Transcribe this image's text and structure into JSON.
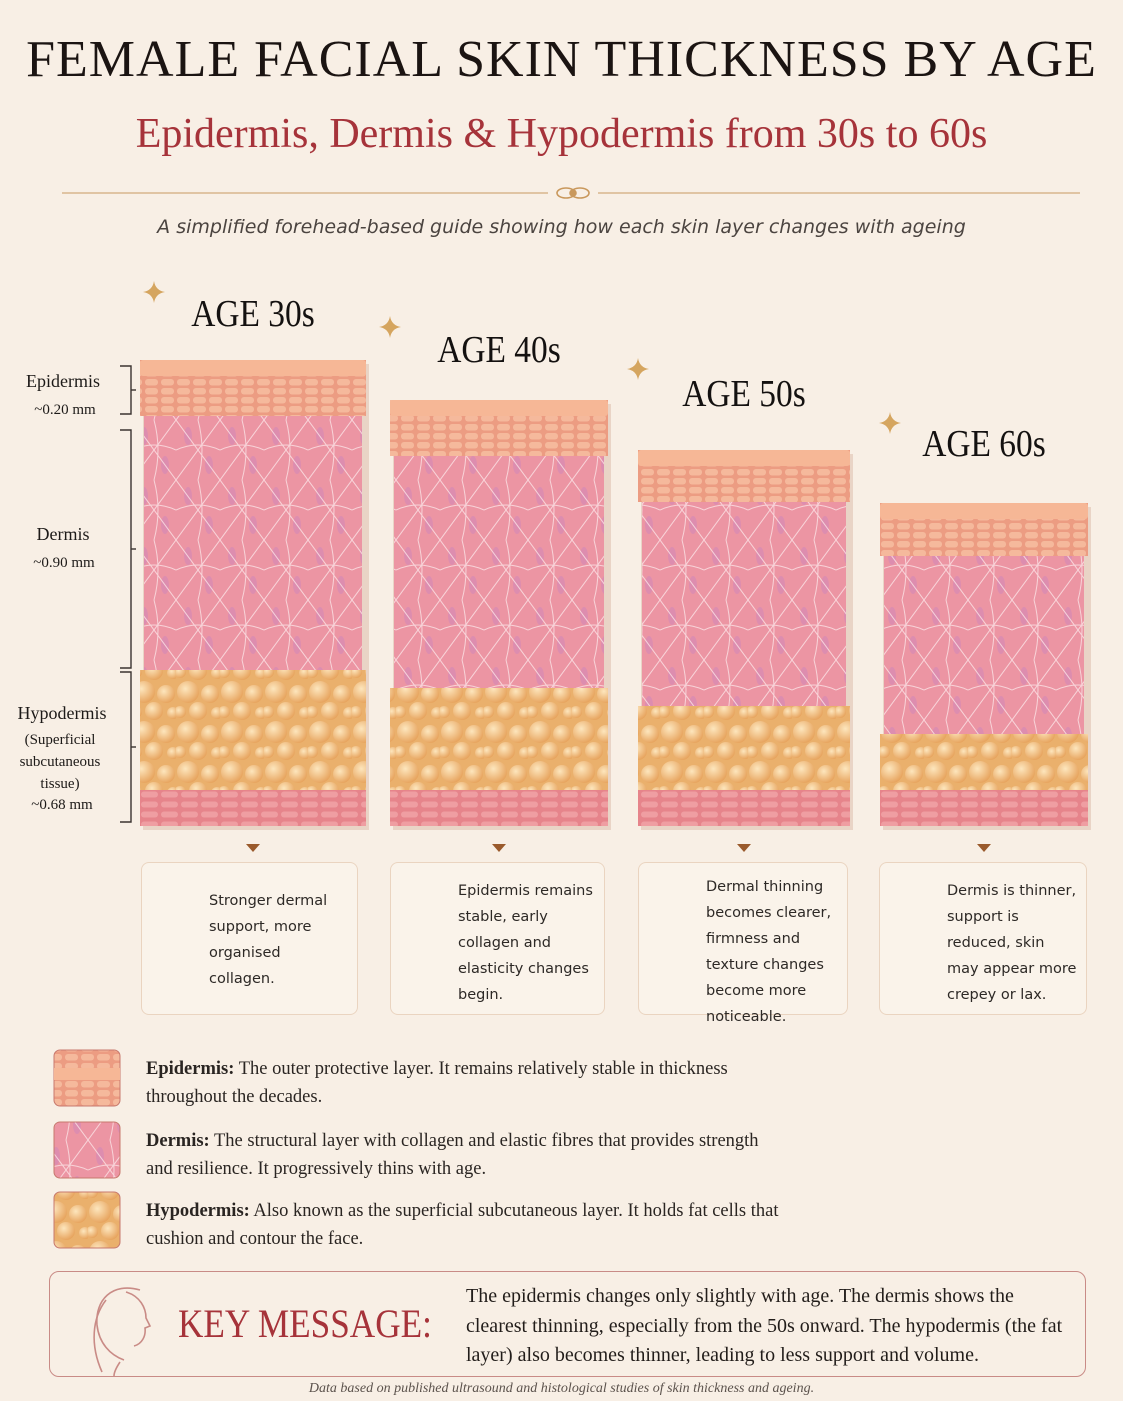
{
  "header": {
    "title": "FEMALE FACIAL SKIN THICKNESS BY AGE",
    "subtitle": "Epidermis, Dermis & Hypodermis from 30s to 60s",
    "tagline": "A simplified forehead-based guide showing how each skin layer changes with ageing"
  },
  "layer_labels": [
    {
      "name": "Epidermis",
      "value": "~0.20 mm"
    },
    {
      "name": "Dermis",
      "value": "~0.90 mm"
    },
    {
      "name": "Hypodermis",
      "note": "(Superficial subcutaneous tissue)",
      "value": "~0.68 mm"
    }
  ],
  "columns": [
    {
      "age": "AGE 30s",
      "text": "Stronger dermal support, more organised collagen."
    },
    {
      "age": "AGE 40s",
      "text": "Epidermis remains stable, early collagen and elasticity changes begin."
    },
    {
      "age": "AGE 50s",
      "text": "Dermal thinning becomes clearer, firmness and texture changes become more noticeable."
    },
    {
      "age": "AGE 60s",
      "text": "Dermis is thinner, support is reduced, skin may appear more crepey or lax."
    }
  ],
  "legend": [
    {
      "term": "Epidermis:",
      "text": "The outer protective layer. It remains relatively stable in thickness throughout the decades."
    },
    {
      "term": "Dermis:",
      "text": "The structural layer with collagen and elastic fibres that provides strength and resilience. It progressively thins with age."
    },
    {
      "term": "Hypodermis:",
      "text": "Also known as the superficial subcutaneous layer. It holds fat cells that cushion and contour the face."
    }
  ],
  "key_message": {
    "label": "KEY MESSAGE:",
    "text": "The epidermis changes only slightly with age. The dermis shows the clearest thinning, especially from the 50s onward. The hypodermis (the fat layer) also becomes thinner, leading to less support and volume."
  },
  "footer": "Data based on published ultrasound and histological studies of skin thickness and ageing."
}
